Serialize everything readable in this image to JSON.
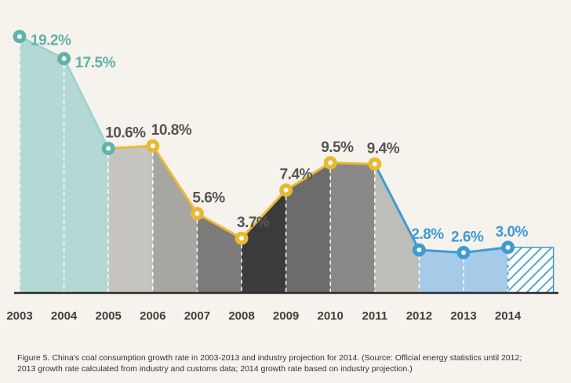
{
  "chart_data": {
    "type": "area",
    "categories": [
      "2003",
      "2004",
      "2005",
      "2006",
      "2007",
      "2008",
      "2009",
      "2010",
      "2011",
      "2012",
      "2013",
      "2014"
    ],
    "values": [
      19.2,
      17.5,
      10.6,
      10.8,
      5.6,
      3.7,
      7.4,
      9.5,
      9.4,
      2.8,
      2.6,
      3.0
    ],
    "value_labels": [
      "19.2%",
      "17.5%",
      "10.6%",
      "10.8%",
      "5.6%",
      "3.7%",
      "7.4%",
      "9.5%",
      "9.4%",
      "2.8%",
      "2.6%",
      "3.0%"
    ],
    "unit": "%",
    "ylim": [
      -0.5,
      20.8
    ],
    "grid": false,
    "title": "",
    "xlabel": "",
    "ylabel": "",
    "segment_fills": [
      "#b4d9d5",
      "#b4d9d5",
      "#c6c4c0",
      "#a8a6a3",
      "#7c7b79",
      "#3b3b3b",
      "#6c6c6a",
      "#8a8987",
      "#bfbdba",
      "#a6cbe8",
      "#a6cbe8",
      "hatched"
    ],
    "point_colors": [
      "#5fb3aa",
      "#5fb3aa",
      "#5fb3aa",
      "#eab933",
      "#eab933",
      "#eab933",
      "#eab933",
      "#eab933",
      "#eab933",
      "#3f9bd2",
      "#3f9bd2",
      "#3f9bd2"
    ],
    "line_colors": {
      "historical": "#a3d1cb",
      "industry": "#eab933",
      "recent": "#3f9bd2"
    },
    "label_colors": {
      "teal": "#5fb3aa",
      "gray": "#555555",
      "blue": "#3f9bd2"
    }
  },
  "caption": {
    "line1": "Figure 5. China's coal consumption growth rate in 2003-2013 and industry projection for 2014. (Source: Official energy statistics until 2012;",
    "line2": "2013 growth rate calculated from industry and customs data; 2014 growth rate based on industry projection.)"
  }
}
